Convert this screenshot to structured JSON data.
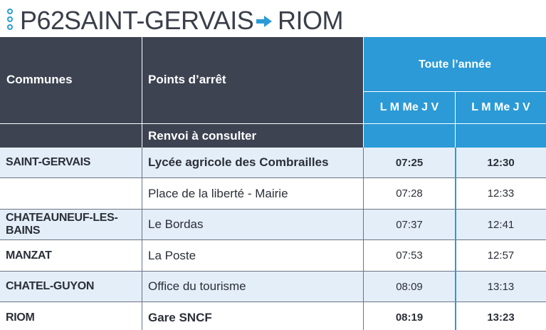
{
  "header": {
    "line_code": "P62",
    "from": "SAINT-GERVAIS",
    "to": "RIOM",
    "accent_color": "#2b9ad6",
    "dark_color": "#3d4351"
  },
  "table": {
    "col_communes": "Communes",
    "col_arrets": "Points d’arrêt",
    "period": "Toute l’année",
    "days_1": "L M Me J V",
    "days_2": "L M Me J V",
    "renvoi": "Renvoi à consulter",
    "rows": [
      {
        "commune": "SAINT-GERVAIS",
        "arret": "Lycée agricole des Combrailles",
        "t1": "07:25",
        "t2": "12:30",
        "bold": true
      },
      {
        "commune": "",
        "arret": "Place de la liberté - Mairie",
        "t1": "07:28",
        "t2": "12:33",
        "bold": false
      },
      {
        "commune": "CHATEAUNEUF-LES-BAINS",
        "arret": "Le Bordas",
        "t1": "07:37",
        "t2": "12:41",
        "bold": false
      },
      {
        "commune": "MANZAT",
        "arret": "La Poste",
        "t1": "07:53",
        "t2": "12:57",
        "bold": false
      },
      {
        "commune": "CHATEL-GUYON",
        "arret": "Office du tourisme",
        "t1": "08:09",
        "t2": "13:13",
        "bold": false
      },
      {
        "commune": "RIOM",
        "arret": "Gare SNCF",
        "t1": "08:19",
        "t2": "13:23",
        "bold": true
      }
    ]
  }
}
